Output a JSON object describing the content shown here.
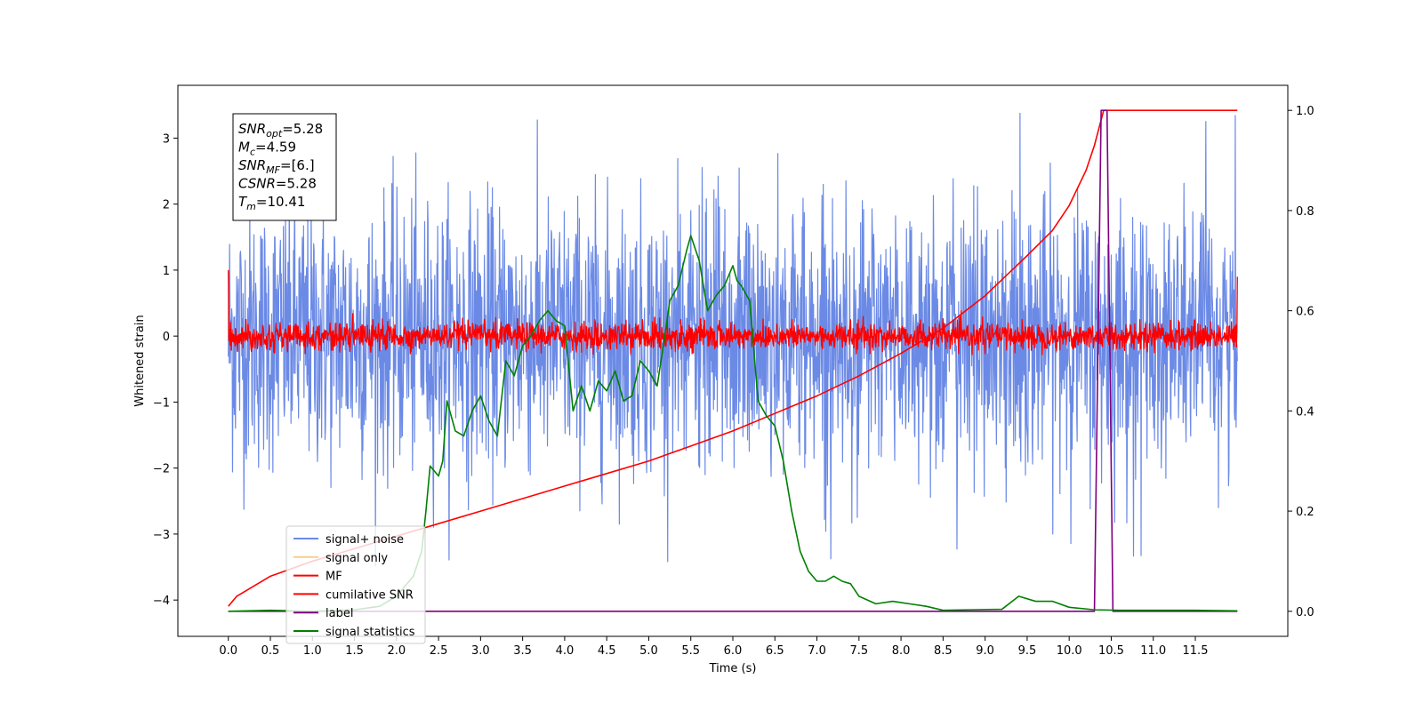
{
  "chart_data": {
    "type": "line",
    "title": "",
    "xlabel": "Time (s)",
    "ylabel": "Whitened strain",
    "y2label": "",
    "xlim": [
      -0.6,
      12.6
    ],
    "ylim": [
      -4.55,
      3.8
    ],
    "y2lim": [
      -0.05,
      1.05
    ],
    "x_ticks": [
      0.0,
      0.5,
      1.0,
      1.5,
      2.0,
      2.5,
      3.0,
      3.5,
      4.0,
      4.5,
      5.0,
      5.5,
      6.0,
      6.5,
      7.0,
      7.5,
      8.0,
      8.5,
      9.0,
      9.5,
      10.0,
      10.5,
      11.0,
      11.5
    ],
    "x_tick_labels": [
      "0.0",
      "0.5",
      "1.0",
      "1.5",
      "2.0",
      "2.5",
      "3.0",
      "3.5",
      "4.0",
      "4.5",
      "5.0",
      "5.5",
      "6.0",
      "6.5",
      "7.0",
      "7.5",
      "8.0",
      "8.5",
      "9.0",
      "9.5",
      "10.0",
      "10.5",
      "11.0",
      "11.5"
    ],
    "y_ticks": [
      -4,
      -3,
      -2,
      -1,
      0,
      1,
      2,
      3
    ],
    "y_tick_labels": [
      "−4",
      "−3",
      "−2",
      "−1",
      "0",
      "1",
      "2",
      "3"
    ],
    "y2_ticks": [
      0.0,
      0.2,
      0.4,
      0.6,
      0.8,
      1.0
    ],
    "y2_tick_labels": [
      "0.0",
      "0.2",
      "0.4",
      "0.6",
      "0.8",
      "1.0"
    ],
    "grid": false,
    "legend_position": "lower-left",
    "series": [
      {
        "name": "signal+ noise",
        "color": "#6b8ae6",
        "axis": "left",
        "kind": "noise",
        "x_range": [
          0.0,
          12.0
        ],
        "approx_std": 1.0,
        "approx_peak_range": [
          -3.5,
          3.45
        ]
      },
      {
        "name": "signal only",
        "color": "#f5c26b",
        "axis": "left",
        "kind": "hidden",
        "x": [],
        "y": []
      },
      {
        "name": "MF",
        "color": "#ff0000",
        "axis": "left",
        "kind": "noise",
        "x_range": [
          0.0,
          12.0
        ],
        "approx_std": 0.1,
        "approx_peak_range": [
          -0.3,
          0.5
        ],
        "endpoints": {
          "start": 1.0,
          "end": 0.9
        }
      },
      {
        "name": "cumilative SNR",
        "color": "#ff0000",
        "axis": "right",
        "x": [
          0.0,
          0.1,
          0.5,
          1.0,
          1.5,
          2.0,
          2.5,
          3.0,
          3.5,
          4.0,
          4.5,
          5.0,
          5.5,
          6.0,
          6.5,
          7.0,
          7.5,
          8.0,
          8.5,
          9.0,
          9.5,
          9.8,
          10.0,
          10.2,
          10.3,
          10.41,
          12.0
        ],
        "y": [
          0.01,
          0.03,
          0.07,
          0.1,
          0.125,
          0.15,
          0.175,
          0.2,
          0.225,
          0.25,
          0.275,
          0.3,
          0.33,
          0.36,
          0.395,
          0.43,
          0.47,
          0.515,
          0.565,
          0.63,
          0.71,
          0.76,
          0.81,
          0.88,
          0.93,
          1.0,
          1.0
        ]
      },
      {
        "name": "label",
        "color": "#800080",
        "axis": "right",
        "x": [
          0.0,
          10.3,
          10.38,
          10.45,
          10.52,
          12.0
        ],
        "y": [
          0.0,
          0.0,
          1.0,
          1.0,
          0.0,
          0.0
        ]
      },
      {
        "name": "signal statistics",
        "color": "#008000",
        "axis": "right",
        "x": [
          0.0,
          0.5,
          1.0,
          1.5,
          1.8,
          2.0,
          2.2,
          2.3,
          2.35,
          2.4,
          2.5,
          2.55,
          2.6,
          2.7,
          2.8,
          2.9,
          3.0,
          3.1,
          3.2,
          3.3,
          3.4,
          3.5,
          3.6,
          3.7,
          3.8,
          3.9,
          4.0,
          4.1,
          4.2,
          4.3,
          4.4,
          4.5,
          4.6,
          4.7,
          4.8,
          4.9,
          5.0,
          5.1,
          5.2,
          5.25,
          5.35,
          5.45,
          5.5,
          5.6,
          5.7,
          5.8,
          5.9,
          6.0,
          6.05,
          6.1,
          6.2,
          6.3,
          6.4,
          6.5,
          6.6,
          6.7,
          6.8,
          6.9,
          7.0,
          7.1,
          7.2,
          7.3,
          7.4,
          7.5,
          7.7,
          7.9,
          8.1,
          8.3,
          8.5,
          8.8,
          9.2,
          9.4,
          9.6,
          9.8,
          10.0,
          10.3,
          10.6,
          11.0,
          11.5,
          12.0
        ],
        "y": [
          0.0,
          0.002,
          0.0,
          0.003,
          0.01,
          0.03,
          0.07,
          0.12,
          0.2,
          0.29,
          0.27,
          0.3,
          0.42,
          0.36,
          0.35,
          0.4,
          0.43,
          0.38,
          0.35,
          0.5,
          0.47,
          0.53,
          0.55,
          0.58,
          0.6,
          0.58,
          0.57,
          0.4,
          0.45,
          0.4,
          0.46,
          0.44,
          0.48,
          0.42,
          0.43,
          0.5,
          0.48,
          0.45,
          0.56,
          0.62,
          0.65,
          0.72,
          0.75,
          0.7,
          0.6,
          0.63,
          0.65,
          0.69,
          0.66,
          0.65,
          0.62,
          0.42,
          0.39,
          0.37,
          0.3,
          0.2,
          0.12,
          0.08,
          0.06,
          0.06,
          0.07,
          0.06,
          0.055,
          0.03,
          0.015,
          0.02,
          0.015,
          0.01,
          0.002,
          0.003,
          0.004,
          0.03,
          0.02,
          0.02,
          0.008,
          0.003,
          0.002,
          0.002,
          0.002,
          0.001
        ]
      }
    ],
    "annotation": {
      "position": "top-left",
      "lines": [
        {
          "base": "SNR",
          "sub": "opt",
          "value": "=5.28"
        },
        {
          "base": "M",
          "sub": "c",
          "value": "=4.59"
        },
        {
          "base": "SNR",
          "sub": "MF",
          "value": "=[6.]"
        },
        {
          "base": "CSNR",
          "sub": "",
          "value": "=5.28"
        },
        {
          "base": "T",
          "sub": "m",
          "value": "=10.41"
        }
      ]
    }
  }
}
